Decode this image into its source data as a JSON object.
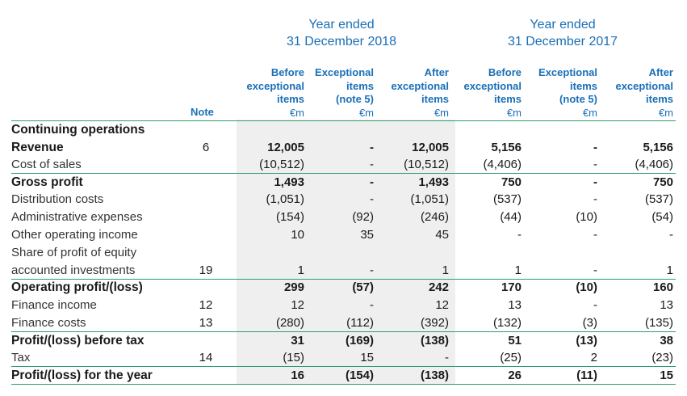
{
  "header": {
    "year_2018": [
      "Year ended",
      "31 December 2018"
    ],
    "year_2017": [
      "Year ended",
      "31 December 2017"
    ],
    "note_label": "Note",
    "columns": [
      {
        "lines": [
          "Before",
          "exceptional",
          "items"
        ],
        "unit": "€m"
      },
      {
        "lines": [
          "Exceptional",
          "items",
          "(note 5)"
        ],
        "unit": "€m"
      },
      {
        "lines": [
          "After",
          "exceptional",
          "items"
        ],
        "unit": "€m"
      },
      {
        "lines": [
          "Before",
          "exceptional",
          "items"
        ],
        "unit": "€m"
      },
      {
        "lines": [
          "Exceptional",
          "items",
          "(note 5)"
        ],
        "unit": "€m"
      },
      {
        "lines": [
          "After",
          "exceptional",
          "items"
        ],
        "unit": "€m"
      }
    ]
  },
  "rows": [
    {
      "label": "Continuing operations",
      "style": "bold",
      "note": "",
      "values": [
        "",
        "",
        "",
        "",
        "",
        ""
      ]
    },
    {
      "label": "Revenue",
      "style": "bold",
      "note": "6",
      "values": [
        "12,005",
        "-",
        "12,005",
        "5,156",
        "-",
        "5,156"
      ]
    },
    {
      "label": "Cost of sales",
      "style": "light",
      "note": "",
      "values": [
        "(10,512)",
        "-",
        "(10,512)",
        "(4,406)",
        "-",
        "(4,406)"
      ]
    },
    {
      "label": "Gross profit",
      "style": "bold",
      "note": "",
      "values": [
        "1,493",
        "-",
        "1,493",
        "750",
        "-",
        "750"
      ]
    },
    {
      "label": "Distribution costs",
      "style": "light",
      "note": "",
      "values": [
        "(1,051)",
        "-",
        "(1,051)",
        "(537)",
        "-",
        "(537)"
      ]
    },
    {
      "label": "Administrative expenses",
      "style": "light",
      "note": "",
      "values": [
        "(154)",
        "(92)",
        "(246)",
        "(44)",
        "(10)",
        "(54)"
      ]
    },
    {
      "label": "Other operating income",
      "style": "light",
      "note": "",
      "values": [
        "10",
        "35",
        "45",
        "-",
        "-",
        "-"
      ]
    },
    {
      "label": "Share of profit of equity",
      "style": "light",
      "note": "",
      "values": [
        "",
        "",
        "",
        "",
        "",
        ""
      ]
    },
    {
      "label": "accounted investments",
      "style": "light",
      "note": "19",
      "values": [
        "1",
        "-",
        "1",
        "1",
        "-",
        "1"
      ]
    },
    {
      "label": "Operating profit/(loss)",
      "style": "bold",
      "note": "",
      "values": [
        "299",
        "(57)",
        "242",
        "170",
        "(10)",
        "160"
      ]
    },
    {
      "label": "Finance income",
      "style": "light",
      "note": "12",
      "values": [
        "12",
        "-",
        "12",
        "13",
        "-",
        "13"
      ]
    },
    {
      "label": "Finance costs",
      "style": "light",
      "note": "13",
      "values": [
        "(280)",
        "(112)",
        "(392)",
        "(132)",
        "(3)",
        "(135)"
      ]
    },
    {
      "label": "Profit/(loss) before tax",
      "style": "bold",
      "note": "",
      "values": [
        "31",
        "(169)",
        "(138)",
        "51",
        "(13)",
        "38"
      ]
    },
    {
      "label": "Tax",
      "style": "light",
      "note": "14",
      "values": [
        "(15)",
        "15",
        "-",
        "(25)",
        "2",
        "(23)"
      ]
    },
    {
      "label": "Profit/(loss) for the year",
      "style": "bold",
      "note": "",
      "values": [
        "16",
        "(154)",
        "(138)",
        "26",
        "(11)",
        "15"
      ]
    }
  ]
}
